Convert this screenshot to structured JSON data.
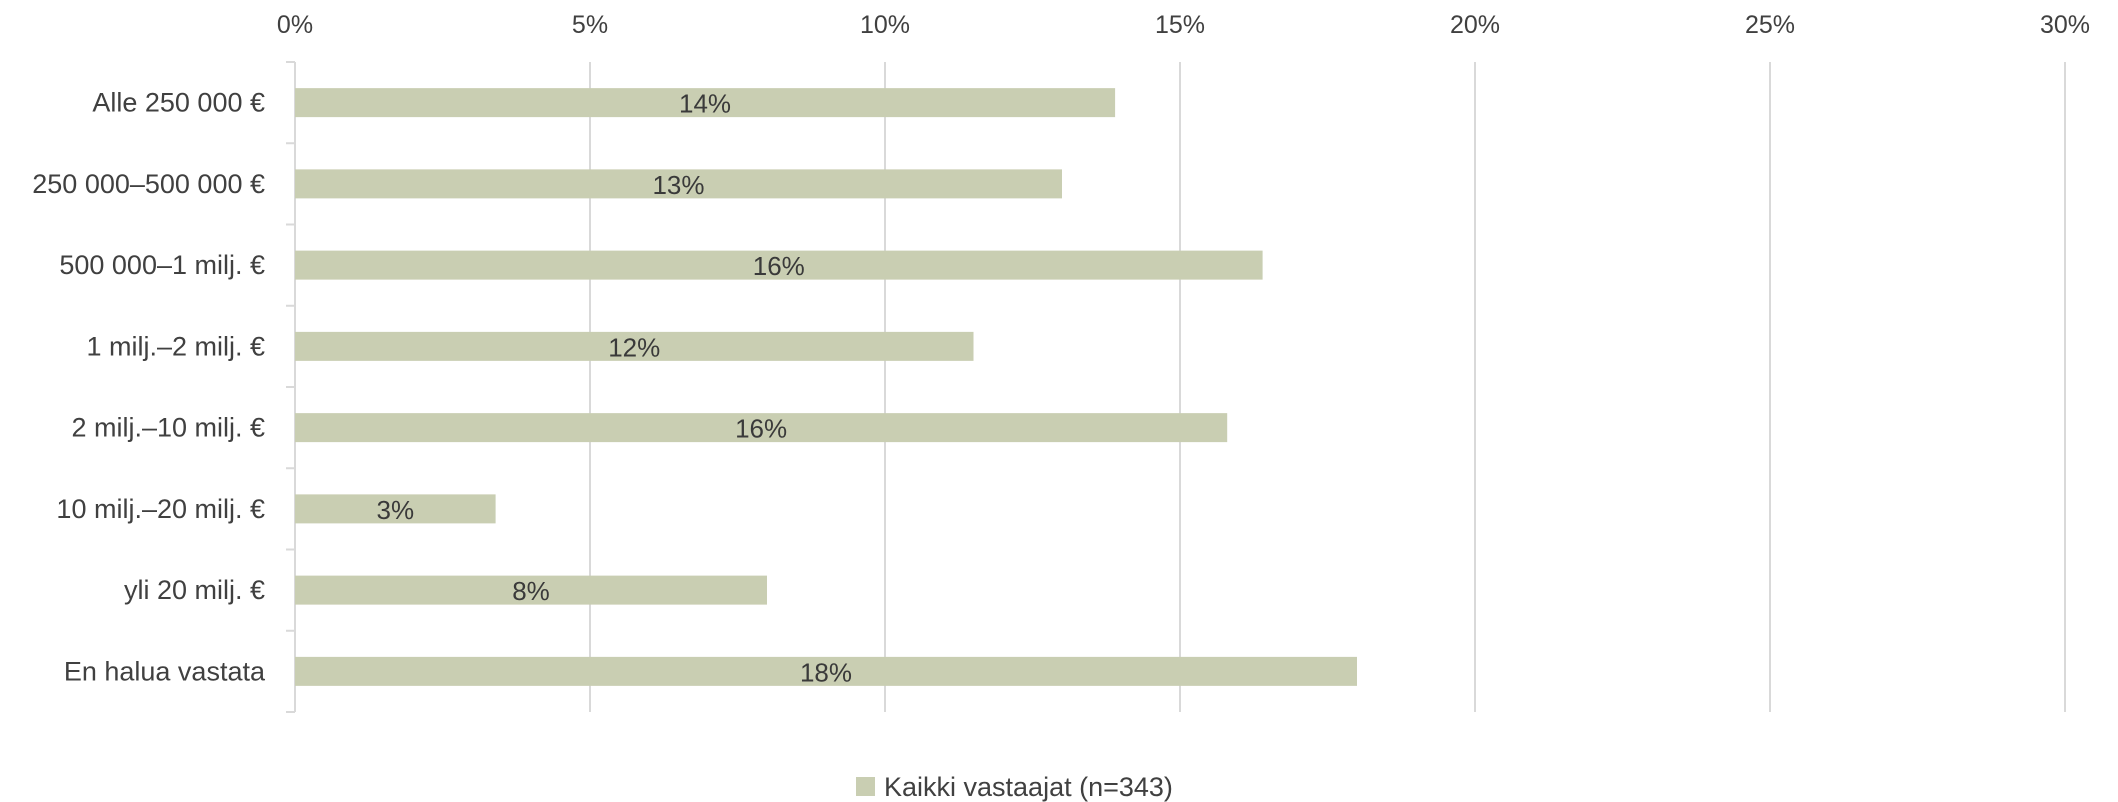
{
  "chart_data": {
    "type": "bar",
    "orientation": "horizontal",
    "categories": [
      "Alle 250 000 €",
      "250 000–500 000 €",
      "500 000–1 milj. €",
      "1 milj.–2 milj. €",
      "2 milj.–10 milj. €",
      "10 milj.–20 milj. €",
      "yli 20 milj. €",
      "En halua vastata"
    ],
    "series": [
      {
        "name": "Kaikki vastaajat (n=343)",
        "color": "#c9ceb2",
        "values": [
          13.9,
          13.0,
          16.4,
          11.5,
          15.8,
          3.4,
          8.0,
          18.0
        ],
        "data_labels": [
          "14%",
          "13%",
          "16%",
          "12%",
          "16%",
          "3%",
          "8%",
          "18%"
        ]
      }
    ],
    "x_ticks": [
      "0%",
      "5%",
      "10%",
      "15%",
      "20%",
      "25%",
      "30%"
    ],
    "xlim": [
      0,
      30
    ],
    "x_axis_position": "top",
    "grid": true,
    "grid_color": "#d9d9d9",
    "legend_position": "bottom-center",
    "title": "",
    "xlabel": "",
    "ylabel": ""
  }
}
